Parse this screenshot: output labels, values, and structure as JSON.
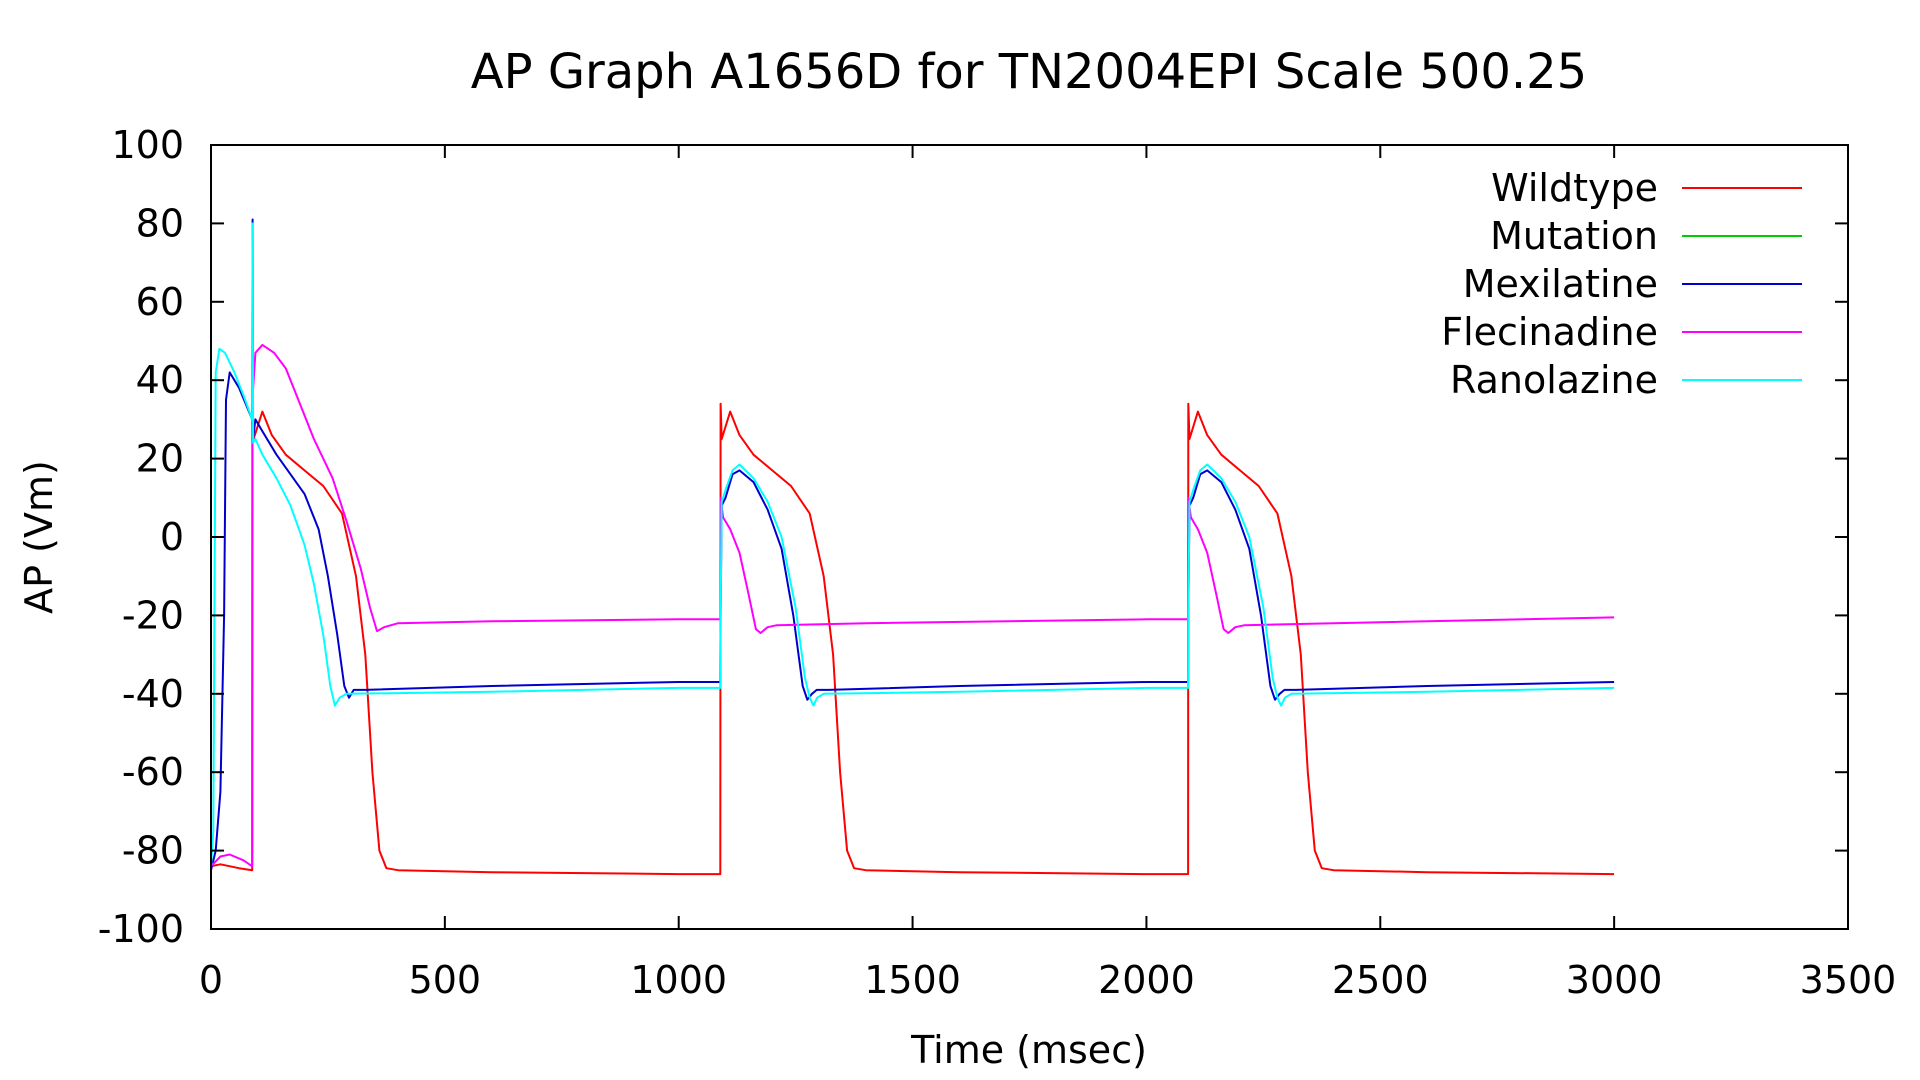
{
  "chart_data": {
    "type": "line",
    "title": "AP Graph A1656D for TN2004EPI Scale 500.25",
    "xlabel": "Time (msec)",
    "ylabel": "AP (Vm)",
    "xlim": [
      0,
      3500
    ],
    "ylim": [
      -100,
      100
    ],
    "xticks": [
      0,
      500,
      1000,
      1500,
      2000,
      2500,
      3000,
      3500
    ],
    "yticks": [
      -100,
      -80,
      -60,
      -40,
      -20,
      0,
      20,
      40,
      60,
      80,
      100
    ],
    "xtick_labels": [
      "0",
      "500",
      "1000",
      "1500",
      "2000",
      "2500",
      "3000",
      "3500"
    ],
    "ytick_labels": [
      "-100",
      "-80",
      "-60",
      "-40",
      "-20",
      "0",
      "20",
      "40",
      "60",
      "80",
      "100"
    ],
    "grid": false,
    "legend_position": "top-right",
    "series": [
      {
        "name": "Wildtype",
        "color": "#ff0000",
        "points": [
          [
            0,
            -84
          ],
          [
            20,
            -83.5
          ],
          [
            60,
            -84.5
          ],
          [
            88,
            -85
          ],
          [
            88.5,
            34
          ],
          [
            91,
            25
          ],
          [
            110,
            32
          ],
          [
            130,
            26
          ],
          [
            160,
            21
          ],
          [
            200,
            17
          ],
          [
            240,
            13
          ],
          [
            280,
            6
          ],
          [
            310,
            -10
          ],
          [
            330,
            -30
          ],
          [
            345,
            -60
          ],
          [
            360,
            -80
          ],
          [
            375,
            -84.5
          ],
          [
            400,
            -85
          ],
          [
            600,
            -85.5
          ],
          [
            1000,
            -86
          ],
          [
            1089,
            -86
          ],
          [
            1089.5,
            34
          ],
          [
            1092,
            25
          ],
          [
            1110,
            32
          ],
          [
            1130,
            26
          ],
          [
            1160,
            21
          ],
          [
            1200,
            17
          ],
          [
            1240,
            13
          ],
          [
            1280,
            6
          ],
          [
            1310,
            -10
          ],
          [
            1330,
            -30
          ],
          [
            1345,
            -60
          ],
          [
            1360,
            -80
          ],
          [
            1375,
            -84.5
          ],
          [
            1400,
            -85
          ],
          [
            1600,
            -85.5
          ],
          [
            2000,
            -86
          ],
          [
            2089,
            -86
          ],
          [
            2089.5,
            34
          ],
          [
            2092,
            25
          ],
          [
            2110,
            32
          ],
          [
            2130,
            26
          ],
          [
            2160,
            21
          ],
          [
            2200,
            17
          ],
          [
            2240,
            13
          ],
          [
            2280,
            6
          ],
          [
            2310,
            -10
          ],
          [
            2330,
            -30
          ],
          [
            2345,
            -60
          ],
          [
            2360,
            -80
          ],
          [
            2375,
            -84.5
          ],
          [
            2400,
            -85
          ],
          [
            2600,
            -85.5
          ],
          [
            3000,
            -86
          ]
        ]
      },
      {
        "name": "Mutation",
        "color": "#00cc00",
        "points": []
      },
      {
        "name": "Mexilatine",
        "color": "#0000cc",
        "points": [
          [
            0,
            -85
          ],
          [
            10,
            -80
          ],
          [
            20,
            -65
          ],
          [
            28,
            -20
          ],
          [
            32,
            35
          ],
          [
            40,
            42
          ],
          [
            60,
            38
          ],
          [
            88,
            30
          ],
          [
            89,
            81
          ],
          [
            90,
            25
          ],
          [
            95,
            30
          ],
          [
            110,
            27
          ],
          [
            140,
            21
          ],
          [
            170,
            16
          ],
          [
            200,
            11
          ],
          [
            230,
            2
          ],
          [
            250,
            -10
          ],
          [
            270,
            -25
          ],
          [
            285,
            -38
          ],
          [
            295,
            -41
          ],
          [
            305,
            -39
          ],
          [
            330,
            -39
          ],
          [
            600,
            -38
          ],
          [
            1000,
            -37
          ],
          [
            1089,
            -37
          ],
          [
            1089.5,
            -20
          ],
          [
            1092,
            8
          ],
          [
            1100,
            10
          ],
          [
            1115,
            16
          ],
          [
            1130,
            17
          ],
          [
            1160,
            14
          ],
          [
            1190,
            7
          ],
          [
            1220,
            -3
          ],
          [
            1245,
            -20
          ],
          [
            1265,
            -38
          ],
          [
            1275,
            -41.5
          ],
          [
            1285,
            -40
          ],
          [
            1295,
            -39
          ],
          [
            1320,
            -39
          ],
          [
            1600,
            -38
          ],
          [
            2000,
            -37
          ],
          [
            2089,
            -37
          ],
          [
            2089.5,
            -20
          ],
          [
            2092,
            8
          ],
          [
            2100,
            10
          ],
          [
            2115,
            16
          ],
          [
            2130,
            17
          ],
          [
            2160,
            14
          ],
          [
            2190,
            7
          ],
          [
            2220,
            -3
          ],
          [
            2245,
            -20
          ],
          [
            2265,
            -38
          ],
          [
            2275,
            -41.5
          ],
          [
            2285,
            -40
          ],
          [
            2295,
            -39
          ],
          [
            2320,
            -39
          ],
          [
            2600,
            -38
          ],
          [
            3000,
            -37
          ]
        ]
      },
      {
        "name": "Flecinadine",
        "color": "#ff00ff",
        "points": [
          [
            0,
            -84
          ],
          [
            20,
            -81.5
          ],
          [
            40,
            -81
          ],
          [
            70,
            -82.5
          ],
          [
            88,
            -84
          ],
          [
            88.5,
            35
          ],
          [
            95,
            47
          ],
          [
            110,
            49
          ],
          [
            135,
            47
          ],
          [
            160,
            43
          ],
          [
            190,
            34
          ],
          [
            220,
            25
          ],
          [
            260,
            15
          ],
          [
            290,
            4
          ],
          [
            320,
            -8
          ],
          [
            340,
            -18
          ],
          [
            355,
            -24
          ],
          [
            370,
            -23
          ],
          [
            400,
            -22
          ],
          [
            600,
            -21.5
          ],
          [
            1000,
            -21
          ],
          [
            1089,
            -21
          ],
          [
            1089.5,
            10
          ],
          [
            1095,
            5
          ],
          [
            1110,
            2
          ],
          [
            1130,
            -4
          ],
          [
            1150,
            -15
          ],
          [
            1165,
            -23.5
          ],
          [
            1175,
            -24.5
          ],
          [
            1190,
            -23
          ],
          [
            1210,
            -22.5
          ],
          [
            1400,
            -22
          ],
          [
            2000,
            -21
          ],
          [
            2089,
            -21
          ],
          [
            2089.5,
            10
          ],
          [
            2095,
            5
          ],
          [
            2110,
            2
          ],
          [
            2130,
            -4
          ],
          [
            2150,
            -15
          ],
          [
            2165,
            -23.5
          ],
          [
            2175,
            -24.5
          ],
          [
            2190,
            -23
          ],
          [
            2210,
            -22.5
          ],
          [
            2400,
            -22
          ],
          [
            3000,
            -20.5
          ]
        ]
      },
      {
        "name": "Ranolazine",
        "color": "#00ffff",
        "points": [
          [
            0,
            -84
          ],
          [
            5,
            -75
          ],
          [
            10,
            42
          ],
          [
            18,
            48
          ],
          [
            30,
            47
          ],
          [
            50,
            42
          ],
          [
            70,
            36
          ],
          [
            88,
            30
          ],
          [
            89,
            80
          ],
          [
            90,
            24
          ],
          [
            95,
            25
          ],
          [
            110,
            21
          ],
          [
            140,
            15
          ],
          [
            170,
            8
          ],
          [
            200,
            -2
          ],
          [
            220,
            -12
          ],
          [
            240,
            -25
          ],
          [
            255,
            -38
          ],
          [
            265,
            -43
          ],
          [
            275,
            -41
          ],
          [
            290,
            -40
          ],
          [
            600,
            -39.5
          ],
          [
            1000,
            -38.5
          ],
          [
            1089,
            -38.5
          ],
          [
            1089.5,
            -20
          ],
          [
            1092,
            9
          ],
          [
            1100,
            12
          ],
          [
            1115,
            17
          ],
          [
            1130,
            18.5
          ],
          [
            1160,
            15
          ],
          [
            1190,
            9
          ],
          [
            1220,
            0
          ],
          [
            1250,
            -18
          ],
          [
            1270,
            -36
          ],
          [
            1280,
            -41
          ],
          [
            1288,
            -43
          ],
          [
            1296,
            -41
          ],
          [
            1310,
            -40
          ],
          [
            1600,
            -39.5
          ],
          [
            2000,
            -38.5
          ],
          [
            2089,
            -38.5
          ],
          [
            2089.5,
            -20
          ],
          [
            2092,
            9
          ],
          [
            2100,
            12
          ],
          [
            2115,
            17
          ],
          [
            2130,
            18.5
          ],
          [
            2160,
            15
          ],
          [
            2190,
            9
          ],
          [
            2220,
            0
          ],
          [
            2250,
            -18
          ],
          [
            2270,
            -36
          ],
          [
            2280,
            -41
          ],
          [
            2288,
            -43
          ],
          [
            2296,
            -41
          ],
          [
            2310,
            -40
          ],
          [
            2600,
            -39.5
          ],
          [
            3000,
            -38.5
          ]
        ]
      }
    ]
  }
}
